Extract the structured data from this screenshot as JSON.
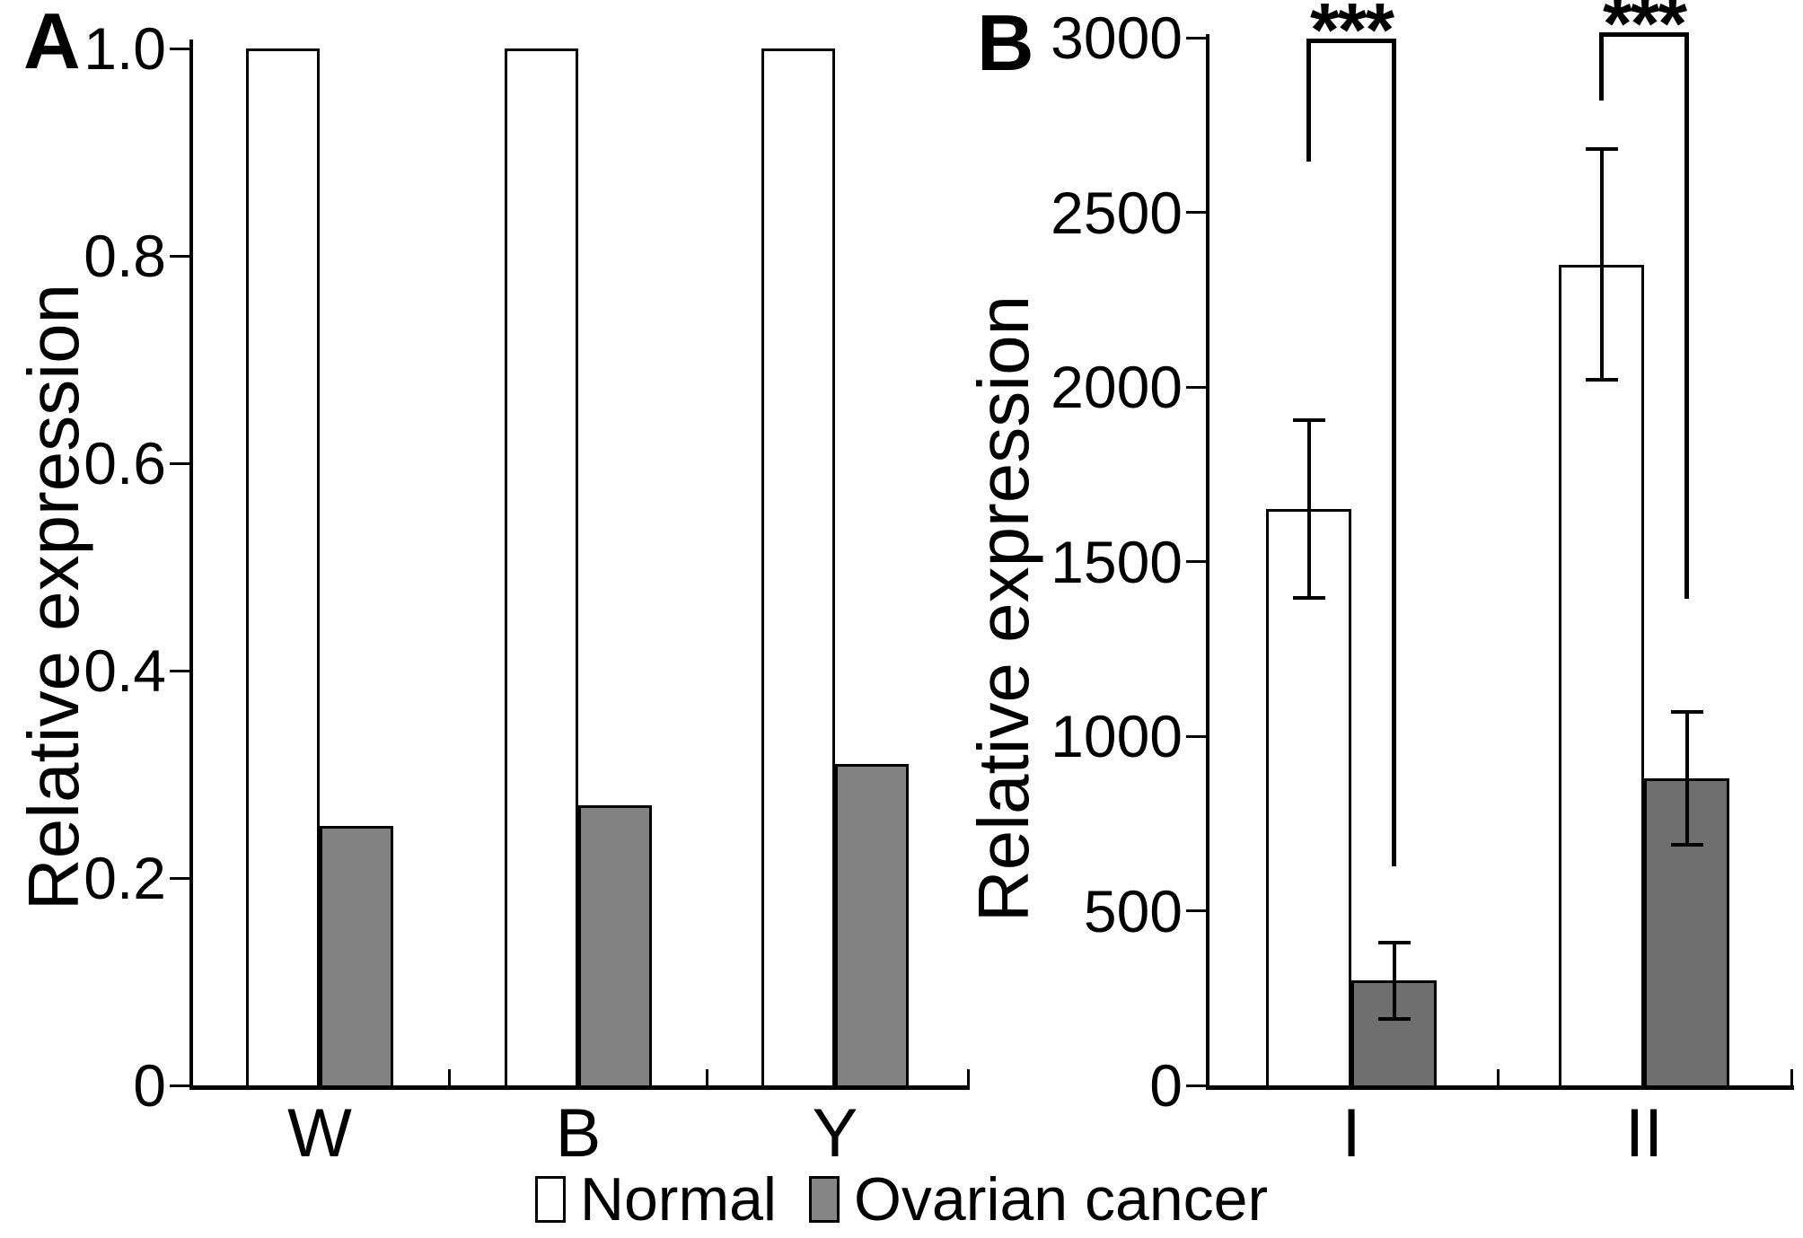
{
  "figure": {
    "panels": [
      {
        "letter": "A"
      },
      {
        "letter": "B"
      }
    ],
    "legend": [
      {
        "label": "Normal",
        "color": "#ffffff"
      },
      {
        "label": "Ovarian cancer",
        "color": "#858585"
      }
    ]
  },
  "chart_data": [
    {
      "panel": "A",
      "type": "bar",
      "title": "",
      "xlabel": "",
      "ylabel": "Relative expression",
      "categories": [
        "W",
        "B",
        "Y"
      ],
      "series": [
        {
          "name": "Normal",
          "color": "#ffffff",
          "values": [
            1.0,
            1.0,
            1.0
          ]
        },
        {
          "name": "Ovarian cancer",
          "color": "#818181",
          "values": [
            0.25,
            0.27,
            0.31
          ]
        }
      ],
      "ylim": [
        0,
        1.0
      ],
      "yticks": [
        0,
        0.2,
        0.4,
        0.6,
        0.8,
        1.0
      ],
      "ytick_labels": [
        "0",
        "0.2",
        "0.4",
        "0.6",
        "0.8",
        "1.0"
      ],
      "grid": false,
      "legend_position": "bottom"
    },
    {
      "panel": "B",
      "type": "bar",
      "title": "",
      "xlabel": "",
      "ylabel": "Relative expression",
      "categories": [
        "I",
        "II"
      ],
      "series": [
        {
          "name": "Normal",
          "color": "#ffffff",
          "values": [
            1650,
            2350
          ],
          "errors": [
            255,
            330
          ]
        },
        {
          "name": "Ovarian cancer",
          "color": "#6f6f6f",
          "values": [
            300,
            880
          ],
          "errors": [
            110,
            190
          ]
        }
      ],
      "ylim": [
        0,
        3000
      ],
      "yticks": [
        0,
        500,
        1000,
        1500,
        2000,
        2500,
        3000
      ],
      "ytick_labels": [
        "0",
        "500",
        "1000",
        "1500",
        "2000",
        "2500",
        "3000"
      ],
      "significance": [
        {
          "pair": "I: Normal vs Ovarian cancer",
          "label": "***"
        },
        {
          "pair": "II: Normal vs Ovarian cancer",
          "label": "***"
        }
      ],
      "grid": false,
      "legend_position": "bottom"
    }
  ]
}
